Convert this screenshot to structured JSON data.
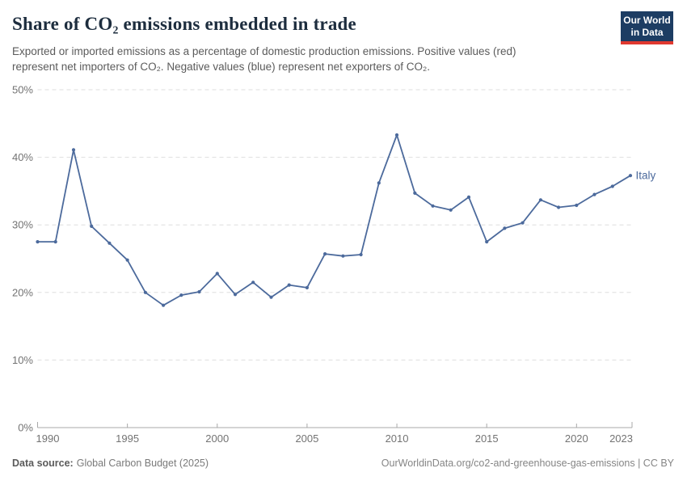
{
  "header": {
    "title": "Share of CO₂ emissions embedded in trade",
    "subtitle_line1": "Exported or imported emissions as a percentage of domestic production emissions. Positive values (red)",
    "subtitle_line2": "represent net importers of CO₂. Negative values (blue) represent net exporters of CO₂."
  },
  "logo": {
    "line1": "Our World",
    "line2": "in Data"
  },
  "chart_data": {
    "type": "line",
    "title": "Share of CO₂ emissions embedded in trade",
    "xlabel": "",
    "ylabel": "",
    "xlim": [
      1990,
      2023
    ],
    "ylim": [
      0,
      50
    ],
    "grid": "horizontal-dashed",
    "legend_position": "end-of-line-label",
    "yticks": [
      {
        "value": 0,
        "label": "0%"
      },
      {
        "value": 10,
        "label": "10%"
      },
      {
        "value": 20,
        "label": "20%"
      },
      {
        "value": 30,
        "label": "30%"
      },
      {
        "value": 40,
        "label": "40%"
      },
      {
        "value": 50,
        "label": "50%"
      }
    ],
    "xticks": [
      {
        "value": 1990,
        "label": "1990"
      },
      {
        "value": 1995,
        "label": "1995"
      },
      {
        "value": 2000,
        "label": "2000"
      },
      {
        "value": 2005,
        "label": "2005"
      },
      {
        "value": 2010,
        "label": "2010"
      },
      {
        "value": 2015,
        "label": "2015"
      },
      {
        "value": 2020,
        "label": "2020"
      },
      {
        "value": 2023,
        "label": "2023"
      }
    ],
    "series": [
      {
        "name": "Italy",
        "color": "#4c6a9c",
        "x": [
          1990,
          1991,
          1992,
          1993,
          1994,
          1995,
          1996,
          1997,
          1998,
          1999,
          2000,
          2001,
          2002,
          2003,
          2004,
          2005,
          2006,
          2007,
          2008,
          2009,
          2010,
          2011,
          2012,
          2013,
          2014,
          2015,
          2016,
          2017,
          2018,
          2019,
          2020,
          2021,
          2022,
          2023
        ],
        "values": [
          27.5,
          27.5,
          41.1,
          29.8,
          27.3,
          24.8,
          20.0,
          18.1,
          19.6,
          20.1,
          22.8,
          19.7,
          21.5,
          19.3,
          21.1,
          20.7,
          25.7,
          25.4,
          25.6,
          36.2,
          43.3,
          34.7,
          32.8,
          32.2,
          34.1,
          27.5,
          29.5,
          30.3,
          33.7,
          32.6,
          32.9,
          34.5,
          35.7,
          37.3
        ]
      }
    ]
  },
  "footer": {
    "source_label": "Data source:",
    "source_value": "Global Carbon Budget (2025)",
    "credit": "OurWorldinData.org/co2-and-greenhouse-gas-emissions | CC BY"
  },
  "colors": {
    "line_blue": "#4c6a9c",
    "logo_navy": "#1d3d63",
    "logo_red": "#e0392f",
    "gridline": "#dedede",
    "axis": "#a8a8a8",
    "title_text": "#1d2d3e",
    "subtitle_text": "#5b5b5b",
    "tick_text": "#737373"
  }
}
